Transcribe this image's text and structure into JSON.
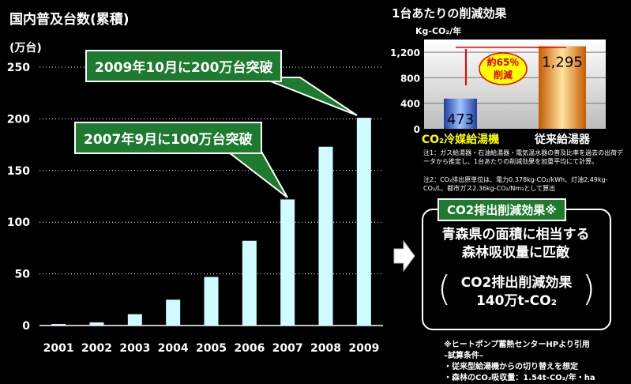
{
  "main_title": "国内普及台数(累積)",
  "unit_label": "(万台)",
  "callouts": {
    "c2009": "2009年10月に200万台突破",
    "c2007": "2007年9月に100万台突破"
  },
  "colors": {
    "bar": "#cffcff",
    "callout_green": "#1e7a2e",
    "blue_bar": "#3f6fe0",
    "orange_bar": "#ff8a10",
    "yellow": "#ffff00"
  },
  "chart_data": [
    {
      "type": "bar",
      "categories": [
        "2001",
        "2002",
        "2003",
        "2004",
        "2005",
        "2006",
        "2007",
        "2008",
        "2009"
      ],
      "values": [
        1.5,
        3,
        11,
        25,
        47,
        82,
        122,
        173,
        201
      ],
      "ylabel": "(万台)",
      "ylim": [
        0,
        250
      ],
      "yticks": [
        0,
        50,
        100,
        150,
        200,
        250
      ],
      "grid": true
    },
    {
      "type": "bar",
      "title": "1台あたりの削減効果",
      "ylabel": "Kg-CO₂/年",
      "categories": [
        "CO₂冷媒給湯機",
        "従来給湯器"
      ],
      "values": [
        473,
        1295
      ],
      "ylim": [
        0,
        1400
      ],
      "yticks": [
        0,
        400,
        800,
        1200
      ],
      "ytick_labels": [
        "0",
        "400",
        "800",
        "1,200"
      ],
      "data_labels": [
        "473",
        "1,295"
      ],
      "annotation": "約65％ 削減"
    }
  ],
  "right_title": "1台あたりの削減効果",
  "right_unit": "Kg-CO₂/年",
  "annotation_line1": "約65％",
  "annotation_line2": "削減",
  "note1": "注1：ガス給湯器・石油給湯器・電気温水器の普及比率を過去の出荷データから推定し、1台あたりの削減効果を加重平均にて計算。",
  "note2": "注2：CO₂排出原単位は、電力0.378kg-CO₂/kWh、灯油2.49kg-CO₂/L、都市ガス2.36kg-CO₂/Nm₃として算出",
  "effect": {
    "header": "CO2排出削減効果※",
    "text_line1": "青森県の面積に相当する",
    "text_line2": "森林吸収量に匹敵",
    "inner_label": "CO2排出削減効果",
    "inner_value": "140万t-CO₂"
  },
  "arrow_glyph": "⇨",
  "source_notes": [
    "※ヒートポンプ蓄熱センターHPより引用",
    "–試算条件–",
    "・従来型給湯機からの切り替えを想定",
    "・森林のCO₂吸収量：1.54t-CO₂/年・ha"
  ]
}
